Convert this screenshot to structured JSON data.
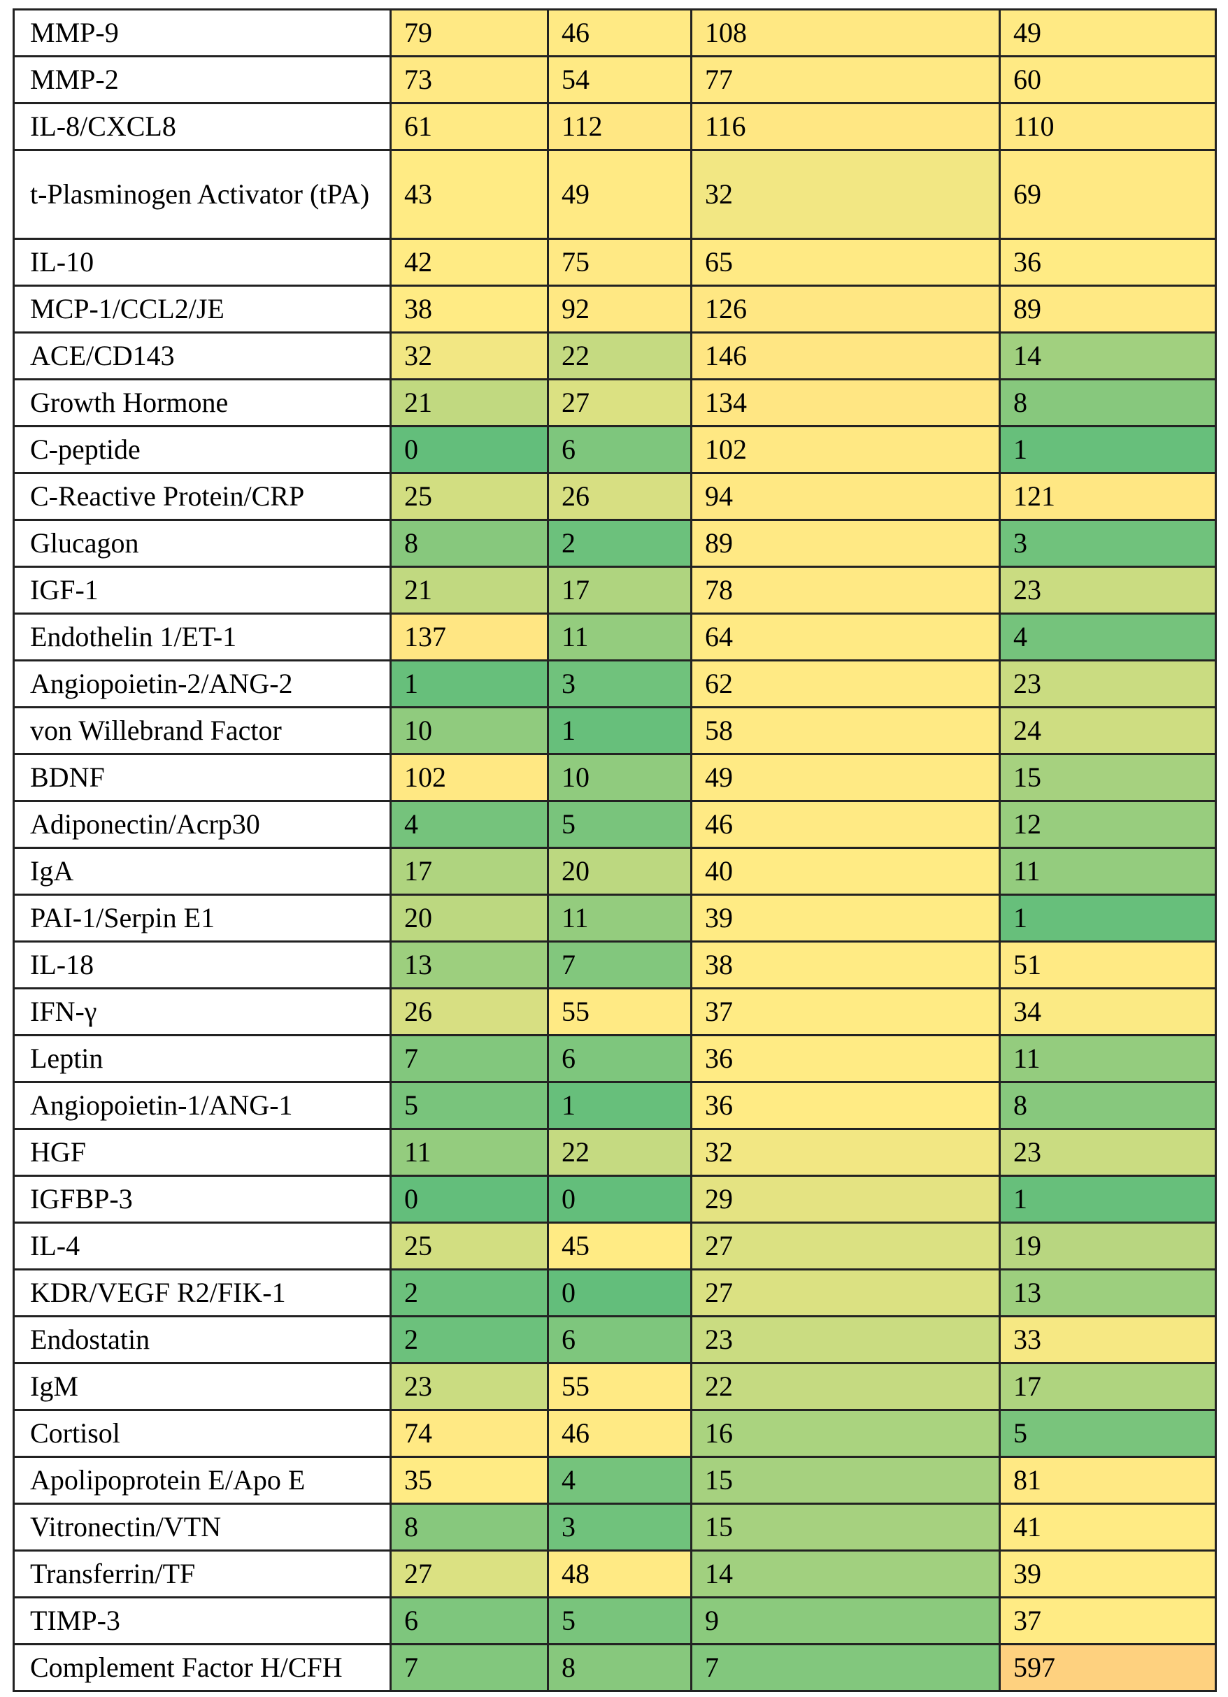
{
  "color_scale": {
    "low": "#63be7b",
    "mid": "#ffeb84",
    "high": "#fed17f"
  },
  "rows": [
    {
      "name": "MMP-9",
      "values": [
        79,
        46,
        108,
        49
      ]
    },
    {
      "name": "MMP-2",
      "values": [
        73,
        54,
        77,
        60
      ]
    },
    {
      "name": "IL-8/CXCL8",
      "values": [
        61,
        112,
        116,
        110
      ]
    },
    {
      "name": "t-Plasminogen Activator (tPA)",
      "values": [
        43,
        49,
        32,
        69
      ]
    },
    {
      "name": "IL-10",
      "values": [
        42,
        75,
        65,
        36
      ]
    },
    {
      "name": "MCP-1/CCL2/JE",
      "values": [
        38,
        92,
        126,
        89
      ]
    },
    {
      "name": "ACE/CD143",
      "values": [
        32,
        22,
        146,
        14
      ]
    },
    {
      "name": "Growth Hormone",
      "values": [
        21,
        27,
        134,
        8
      ]
    },
    {
      "name": "C-peptide",
      "values": [
        0,
        6,
        102,
        1
      ]
    },
    {
      "name": "C-Reactive Protein/CRP",
      "values": [
        25,
        26,
        94,
        121
      ]
    },
    {
      "name": "Glucagon",
      "values": [
        8,
        2,
        89,
        3
      ]
    },
    {
      "name": "IGF-1",
      "values": [
        21,
        17,
        78,
        23
      ]
    },
    {
      "name": "Endothelin 1/ET-1",
      "values": [
        137,
        11,
        64,
        4
      ]
    },
    {
      "name": "Angiopoietin-2/ANG-2",
      "values": [
        1,
        3,
        62,
        23
      ]
    },
    {
      "name": "von Willebrand Factor",
      "values": [
        10,
        1,
        58,
        24
      ]
    },
    {
      "name": "BDNF",
      "values": [
        102,
        10,
        49,
        15
      ]
    },
    {
      "name": "Adiponectin/Acrp30",
      "values": [
        4,
        5,
        46,
        12
      ]
    },
    {
      "name": "IgA",
      "values": [
        17,
        20,
        40,
        11
      ]
    },
    {
      "name": "PAI-1/Serpin E1",
      "values": [
        20,
        11,
        39,
        1
      ]
    },
    {
      "name": "IL-18",
      "values": [
        13,
        7,
        38,
        51
      ]
    },
    {
      "name": "IFN-γ",
      "values": [
        26,
        55,
        37,
        34
      ]
    },
    {
      "name": "Leptin",
      "values": [
        7,
        6,
        36,
        11
      ]
    },
    {
      "name": "Angiopoietin-1/ANG-1",
      "values": [
        5,
        1,
        36,
        8
      ]
    },
    {
      "name": "HGF",
      "values": [
        11,
        22,
        32,
        23
      ]
    },
    {
      "name": "IGFBP-3",
      "values": [
        0,
        0,
        29,
        1
      ]
    },
    {
      "name": "IL-4",
      "values": [
        25,
        45,
        27,
        19
      ]
    },
    {
      "name": "KDR/VEGF R2/FIK-1",
      "values": [
        2,
        0,
        27,
        13
      ]
    },
    {
      "name": "Endostatin",
      "values": [
        2,
        6,
        23,
        33
      ]
    },
    {
      "name": "IgM",
      "values": [
        23,
        55,
        22,
        17
      ]
    },
    {
      "name": "Cortisol",
      "values": [
        74,
        46,
        16,
        5
      ]
    },
    {
      "name": "Apolipoprotein E/Apo E",
      "values": [
        35,
        4,
        15,
        81
      ]
    },
    {
      "name": "Vitronectin/VTN",
      "values": [
        8,
        3,
        15,
        41
      ]
    },
    {
      "name": "Transferrin/TF",
      "values": [
        27,
        48,
        14,
        39
      ]
    },
    {
      "name": "TIMP-3",
      "values": [
        6,
        5,
        9,
        37
      ]
    },
    {
      "name": "Complement Factor H/CFH",
      "values": [
        7,
        8,
        7,
        597
      ]
    }
  ]
}
